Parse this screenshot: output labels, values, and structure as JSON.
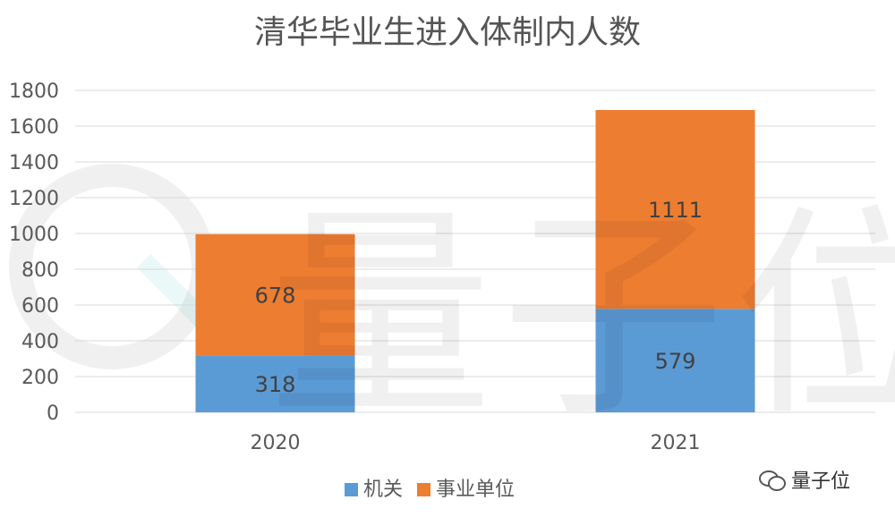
{
  "chart_data": {
    "type": "bar",
    "stacked": true,
    "title": "清华毕业生进入体制内人数",
    "categories": [
      "2020",
      "2021"
    ],
    "series": [
      {
        "name": "机关",
        "values": [
          318,
          579
        ],
        "color": "#5B9BD5"
      },
      {
        "name": "事业单位",
        "values": [
          678,
          1111
        ],
        "color": "#ED7D31"
      }
    ],
    "yticks": [
      "0",
      "200",
      "400",
      "600",
      "800",
      "1000",
      "1200",
      "1400",
      "1600",
      "1800"
    ],
    "ylim": [
      0,
      1800
    ],
    "grid": true,
    "legend_position": "bottom"
  },
  "watermark": {
    "text": "量子位"
  },
  "brand": {
    "text": "量子位",
    "icon": "wechat-icon"
  }
}
